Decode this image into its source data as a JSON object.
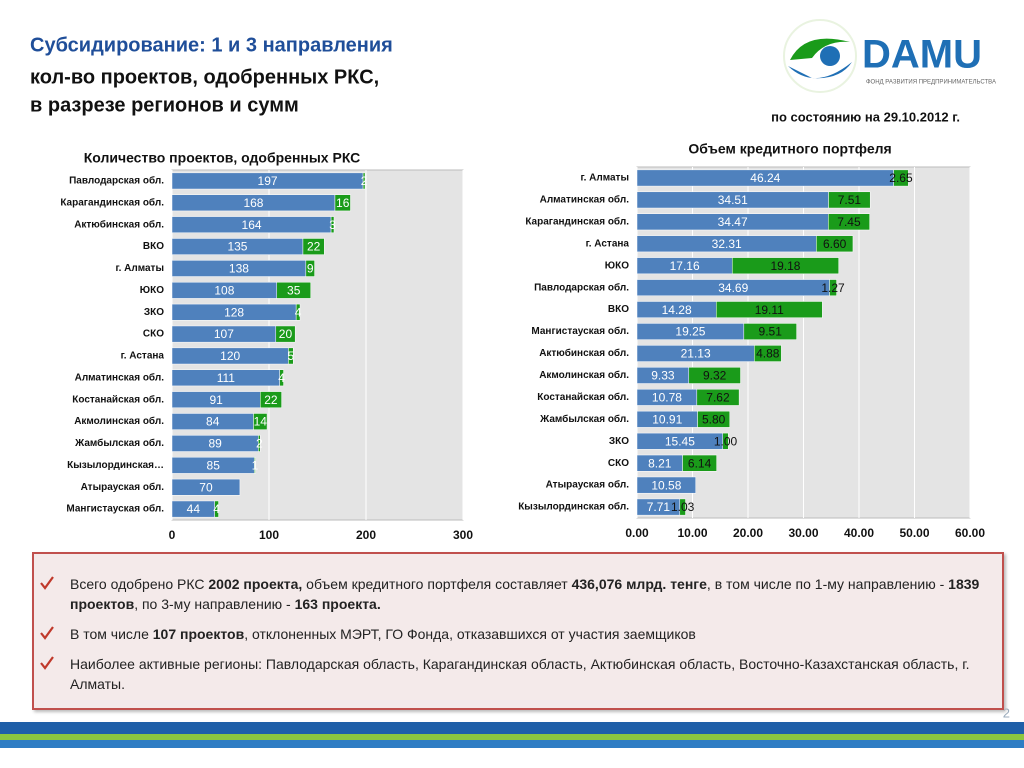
{
  "header": {
    "title": "Субсидирование: 1 и 3 направления",
    "lines": [
      "кол-во проектов, одобренных РКС,",
      "в разрезе регионов и сумм"
    ]
  },
  "date": "по состоянию на 29.10.2012 г.",
  "logo": {
    "name": "DAMU",
    "tagline": "ФОНД РАЗВИТИЯ ПРЕДПРИНИМАТЕЛЬСТВА"
  },
  "chart_data": [
    {
      "type": "bar",
      "orientation": "horizontal",
      "stacked": true,
      "grid": true,
      "title": "Количество проектов, одобренных РКС",
      "categories": [
        "Павлодарская обл.",
        "Карагандинская обл.",
        "Актюбинская обл.",
        "ВКО",
        "г. Алматы",
        "ЮКО",
        "ЗКО",
        "СКО",
        "г. Астана",
        "Алматинская обл.",
        "Костанайская обл.",
        "Акмолинская обл.",
        "Жамбылская обл.",
        "Кызылординская…",
        "Атырауская обл.",
        "Мангистауская обл."
      ],
      "series": [
        {
          "color": "#4f81bd",
          "values": [
            197,
            168,
            164,
            135,
            138,
            108,
            128,
            107,
            120,
            111,
            91,
            84,
            89,
            85,
            70,
            44
          ]
        },
        {
          "color": "#1a9b1a",
          "values": [
            2,
            16,
            3,
            22,
            9,
            35,
            4,
            20,
            5,
            4,
            22,
            14,
            2,
            1,
            null,
            4
          ]
        }
      ],
      "xlim": [
        0,
        300
      ],
      "xticks": [
        0,
        100,
        200,
        300
      ]
    },
    {
      "type": "bar",
      "orientation": "horizontal",
      "stacked": true,
      "grid": true,
      "title": "Объем кредитного портфеля",
      "categories": [
        "г. Алматы",
        "Алматинская обл.",
        "Карагандинская обл.",
        "г. Астана",
        "ЮКО",
        "Павлодарская обл.",
        "ВКО",
        "Мангистауская обл.",
        "Актюбинская обл.",
        "Акмолинская обл.",
        "Костанайская обл.",
        "Жамбылская обл.",
        "ЗКО",
        "СКО",
        "Атырауская обл.",
        "Кызылординская обл."
      ],
      "series": [
        {
          "color": "#4f81bd",
          "values": [
            46.24,
            34.51,
            34.47,
            32.31,
            17.16,
            34.69,
            14.28,
            19.25,
            21.13,
            9.33,
            10.78,
            10.91,
            15.45,
            8.21,
            10.58,
            7.71
          ],
          "value_labels": [
            "46.24",
            "34.51",
            "34.47",
            "32.31",
            "17.16",
            "34.69",
            "14.28",
            "19.25",
            "21.13",
            "9.33",
            "10.78",
            "10.91",
            "15.45",
            "8.21",
            "10.58",
            "7.71"
          ]
        },
        {
          "color": "#1a9b1a",
          "values": [
            2.65,
            7.51,
            7.45,
            6.6,
            19.18,
            1.27,
            19.11,
            9.51,
            4.88,
            9.32,
            7.62,
            5.8,
            1,
            6.14,
            null,
            1.03
          ],
          "value_labels": [
            "2.65",
            "7.51",
            "7.45",
            "6.60",
            "19.18",
            "1.27",
            "19.11",
            "9.51",
            "4.88",
            "9.32",
            "7.62",
            "5.80",
            "1.00",
            "6.14",
            null,
            "1.03"
          ]
        }
      ],
      "xlim": [
        0,
        60
      ],
      "xticks": [
        {
          "value": 0,
          "label": "0.00"
        },
        {
          "value": 10,
          "label": "10.00"
        },
        {
          "value": 20,
          "label": "20.00"
        },
        {
          "value": 30,
          "label": "30.00"
        },
        {
          "value": 40,
          "label": "40.00"
        },
        {
          "value": 50,
          "label": "50.00"
        },
        {
          "value": 60,
          "label": "60.00"
        }
      ]
    }
  ],
  "bullets": [
    [
      {
        "text": "Всего одобрено РКС "
      },
      {
        "text": "2002 проекта,",
        "bold": true
      },
      {
        "text": " объем кредитного портфеля составляет "
      },
      {
        "text": "436,076 млрд. тенге",
        "bold": true
      },
      {
        "text": ", в том числе по 1-му направлению -  "
      },
      {
        "text": "1839 проектов",
        "bold": true
      },
      {
        "text": ", по 3-му направлению - "
      },
      {
        "text": "163 проекта.",
        "bold": true
      }
    ],
    [
      {
        "text": "В том числе "
      },
      {
        "text": "107 проектов",
        "bold": true
      },
      {
        "text": ", отклоненных МЭРТ, ГО Фонда, отказавшихся от участия заемщиков"
      }
    ],
    [
      {
        "text": "Наиболее активные регионы: Павлодарская область, Карагандинская область, Актюбинская область, Восточно-Казахстанская область, г. Алматы."
      }
    ]
  ],
  "page_number": "2"
}
